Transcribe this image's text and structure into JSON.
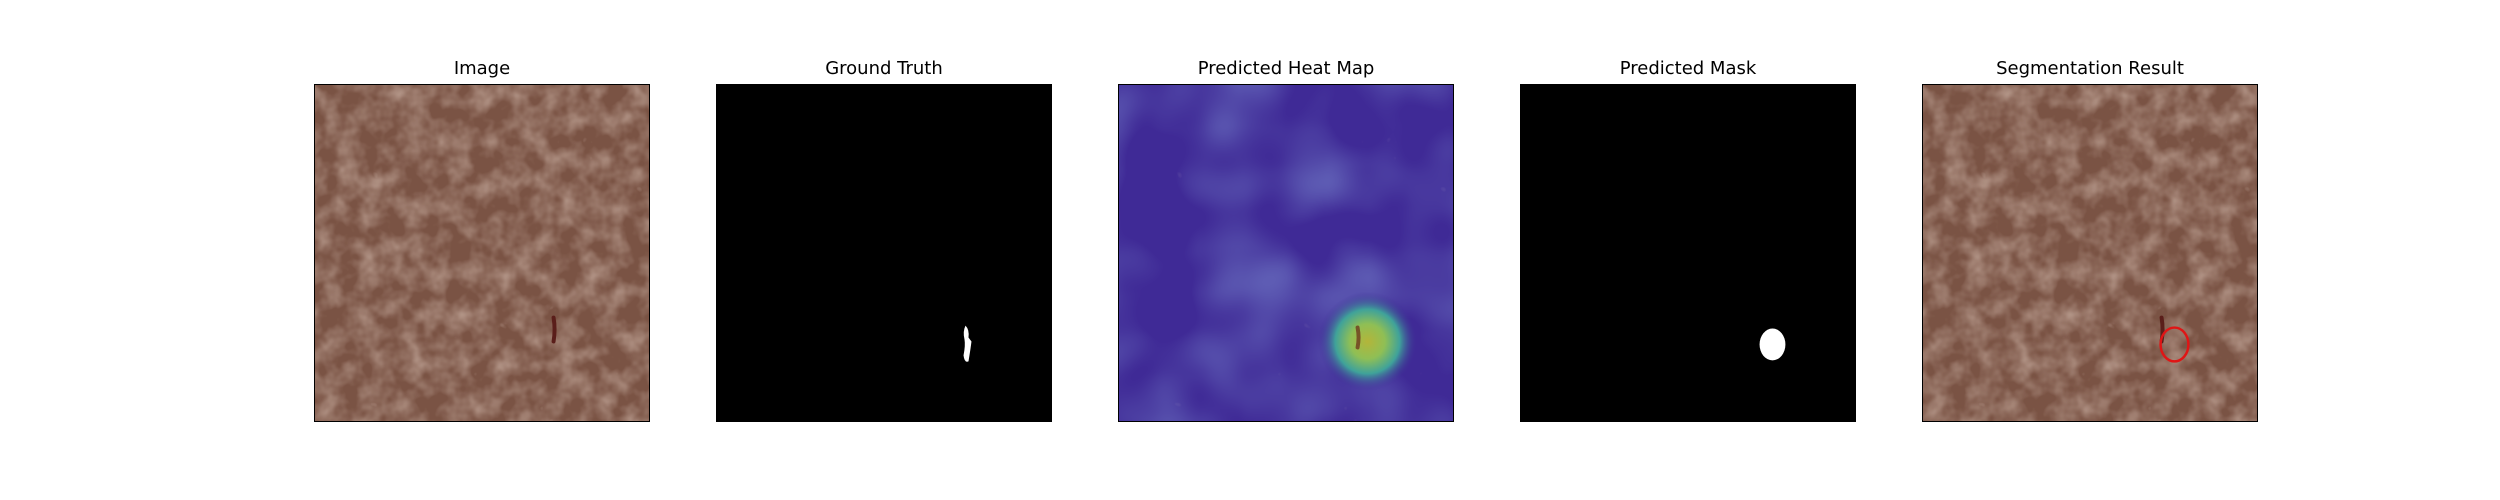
{
  "panels": [
    {
      "title": "Image"
    },
    {
      "title": "Ground Truth"
    },
    {
      "title": "Predicted Heat Map"
    },
    {
      "title": "Predicted Mask"
    },
    {
      "title": "Segmentation Result"
    }
  ],
  "colors": {
    "leather": "#7a5344",
    "defect": "#5a1e1a",
    "mask_bg": "#000000",
    "mask_fg": "#ffffff",
    "heat_base": "#3f2a96",
    "heat_hot": "#c9d540",
    "contour": "#e01515"
  }
}
